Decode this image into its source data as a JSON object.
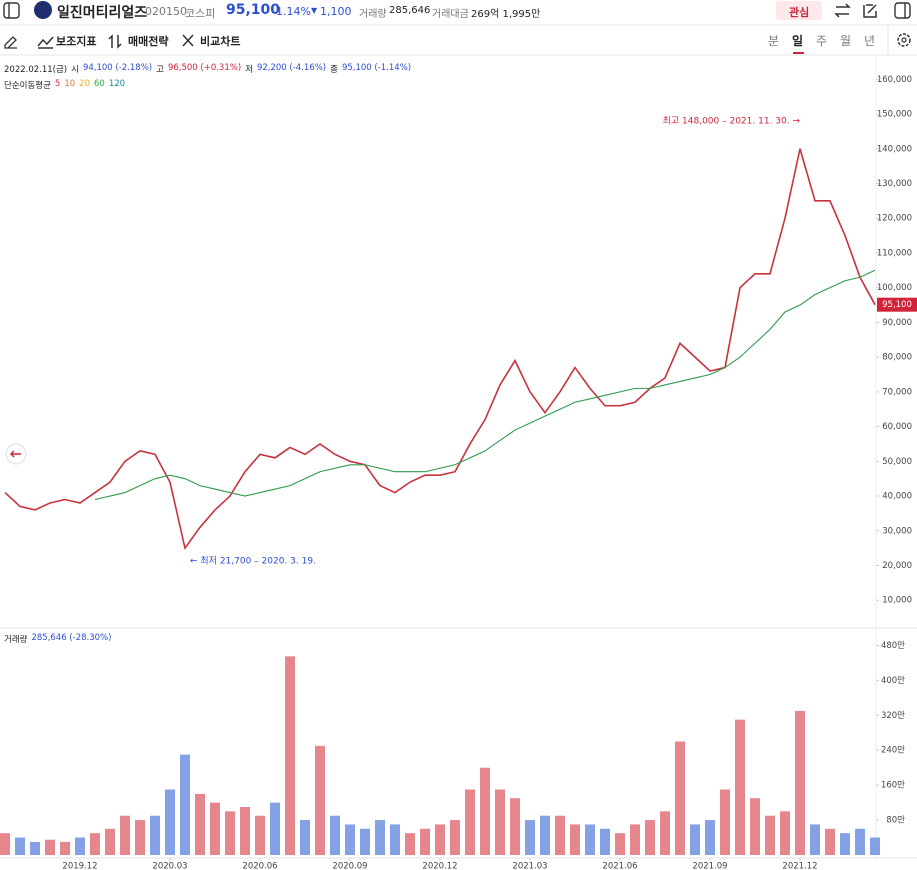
{
  "header": {
    "name": "일진머티리얼즈",
    "code": "020150",
    "market": "코스피",
    "price": "95,100",
    "change_pct": "-1.14%",
    "change": "1,100",
    "volume_label": "거래량",
    "volume": "285,646",
    "amount_label": "거래대금",
    "amount": "269억 1,995만",
    "watch": "관심"
  },
  "toolbar": {
    "items": [
      "보조지표",
      "매매전략",
      "비교차트"
    ],
    "periods": [
      "분",
      "일",
      "주",
      "월",
      "년"
    ]
  },
  "info": {
    "date": "2022.02.11(금)",
    "open_label": "시",
    "open": "94,100 (-2.18%)",
    "high_label": "고",
    "high": "96,500 (+0.31%)",
    "low_label": "저",
    "low": "92,200 (-4.16%)",
    "close_label": "종",
    "close": "95,100 (-1.14%)",
    "ma_title": "단순이동평균",
    "ma_legend": [
      {
        "label": "5",
        "color": "#e0303a"
      },
      {
        "label": "10",
        "color": "#e07a1e"
      },
      {
        "label": "20",
        "color": "#e8b020"
      },
      {
        "label": "60",
        "color": "#3aa84a"
      }
    ]
  },
  "chart_data": {
    "type": "line",
    "categories": [
      null,
      null,
      null,
      null,
      null,
      "2019.12",
      null,
      null,
      null,
      null,
      null,
      "2020.03",
      null,
      null,
      null,
      null,
      null,
      "2020.06",
      null,
      null,
      null,
      null,
      null,
      "2020.09",
      null,
      null,
      null,
      null,
      null,
      "2020.12",
      null,
      null,
      null,
      null,
      null,
      "2021.03",
      null,
      null,
      null,
      null,
      null,
      "2021.06",
      null,
      null,
      null,
      null,
      null,
      "2021.09",
      null,
      null,
      null,
      null,
      null,
      "2021.12",
      null,
      null,
      null,
      null,
      null
    ],
    "series": [
      {
        "color": "#c8323e",
        "values": [
          41000,
          37000,
          36000,
          38000,
          39000,
          38000,
          41000,
          44000,
          50000,
          53000,
          52000,
          44000,
          25000,
          31000,
          36000,
          40000,
          47000,
          52000,
          51000,
          54000,
          52000,
          55000,
          52000,
          50000,
          49000,
          43000,
          41000,
          44000,
          46000,
          46000,
          47000,
          55000,
          62000,
          72000,
          79000,
          70000,
          64000,
          70000,
          77000,
          71000,
          66000,
          66000,
          67000,
          71000,
          74000,
          84000,
          80000,
          76000,
          77000,
          100000,
          104000,
          104000,
          120000,
          140000,
          125000,
          125000,
          115000,
          103000,
          95100
        ]
      },
      {
        "name": "120",
        "color": "#2e9b4a",
        "values": [
          null,
          null,
          null,
          null,
          null,
          null,
          39000,
          40000,
          41000,
          43000,
          45000,
          46000,
          45000,
          43000,
          42000,
          41000,
          40000,
          41000,
          42000,
          43000,
          45000,
          47000,
          48000,
          49000,
          49000,
          48000,
          47000,
          47000,
          47000,
          48000,
          49000,
          51000,
          53000,
          56000,
          59000,
          61000,
          63000,
          65000,
          67000,
          68000,
          69000,
          70000,
          71000,
          71000,
          72000,
          73000,
          74000,
          75000,
          77000,
          80000,
          84000,
          88000,
          93000,
          95000,
          98000,
          100000,
          102000,
          103000,
          105000
        ]
      }
    ],
    "ylim": [
      2000,
      167000
    ],
    "yticks": [
      {
        "value": 10000,
        "label": "10,000"
      },
      {
        "value": 20000,
        "label": "20,000"
      },
      {
        "value": 30000,
        "label": "30,000"
      },
      {
        "value": 40000,
        "label": "40,000"
      },
      {
        "value": 50000,
        "label": "50,000"
      },
      {
        "value": 60000,
        "label": "60,000"
      },
      {
        "value": 70000,
        "label": "70,000"
      },
      {
        "value": 80000,
        "label": "80,000"
      },
      {
        "value": 90000,
        "label": "90,000"
      },
      {
        "value": 100000,
        "label": "100,000"
      },
      {
        "value": 110000,
        "label": "110,000"
      },
      {
        "value": 120000,
        "label": "120,000"
      },
      {
        "value": 130000,
        "label": "130,000"
      },
      {
        "value": 140000,
        "label": "140,000"
      },
      {
        "value": 150000,
        "label": "150,000"
      },
      {
        "value": 160000,
        "label": "160,000"
      }
    ],
    "last_label": "95,100",
    "annotations": {
      "high": "최고 148,000 – 2021. 11. 30. →",
      "low": "← 최저 21,700 – 2020. 3. 19."
    },
    "volume": {
      "type": "bar",
      "label": "거래량",
      "value_label": "285,646 (-28.30%)",
      "up_color": "#e07078",
      "down_color": "#6f90e0",
      "values": [
        500000,
        400000,
        300000,
        350000,
        300000,
        400000,
        500000,
        600000,
        900000,
        800000,
        900000,
        1500000,
        2300000,
        1400000,
        1200000,
        1000000,
        1100000,
        900000,
        1200000,
        4550000,
        800000,
        2500000,
        900000,
        700000,
        600000,
        800000,
        700000,
        500000,
        600000,
        700000,
        800000,
        1500000,
        2000000,
        1500000,
        1300000,
        800000,
        900000,
        900000,
        700000,
        700000,
        600000,
        500000,
        700000,
        800000,
        1000000,
        2600000,
        700000,
        800000,
        1500000,
        3100000,
        1300000,
        900000,
        1000000,
        3300000,
        700000,
        600000,
        500000,
        600000,
        400000
      ],
      "ylim": [
        0,
        5200000
      ],
      "yticks": [
        {
          "value": 800000,
          "label": "80만"
        },
        {
          "value": 1600000,
          "label": "160만"
        },
        {
          "value": 2400000,
          "label": "240만"
        },
        {
          "value": 3200000,
          "label": "320만"
        },
        {
          "value": 4000000,
          "label": "400만"
        },
        {
          "value": 4800000,
          "label": "480만"
        }
      ]
    }
  }
}
